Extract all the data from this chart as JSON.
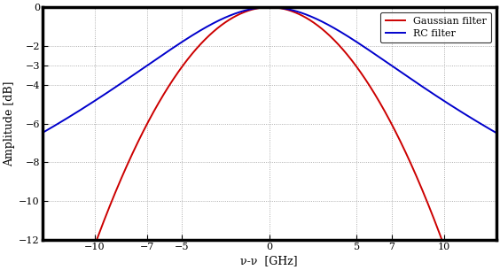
{
  "xlabel": "ν-ν  [GHz]",
  "ylabel": "Amplitude [dB]",
  "xlim": [
    -13,
    13
  ],
  "ylim": [
    -12,
    0
  ],
  "xticks": [
    -10,
    -7,
    -5,
    0,
    5,
    7,
    10
  ],
  "yticks": [
    0,
    -2,
    -3,
    -4,
    -6,
    -8,
    -10,
    -12
  ],
  "Be": 7,
  "gaussian_color": "#cc0000",
  "rc_color": "#0000cc",
  "background_color": "#ffffff",
  "grid_color": "#999999",
  "legend_labels": [
    "Gaussian filter",
    "RC filter"
  ],
  "linewidth": 1.4,
  "spine_linewidth": 2.5,
  "tick_fontsize": 8,
  "label_fontsize": 9,
  "legend_fontsize": 8
}
